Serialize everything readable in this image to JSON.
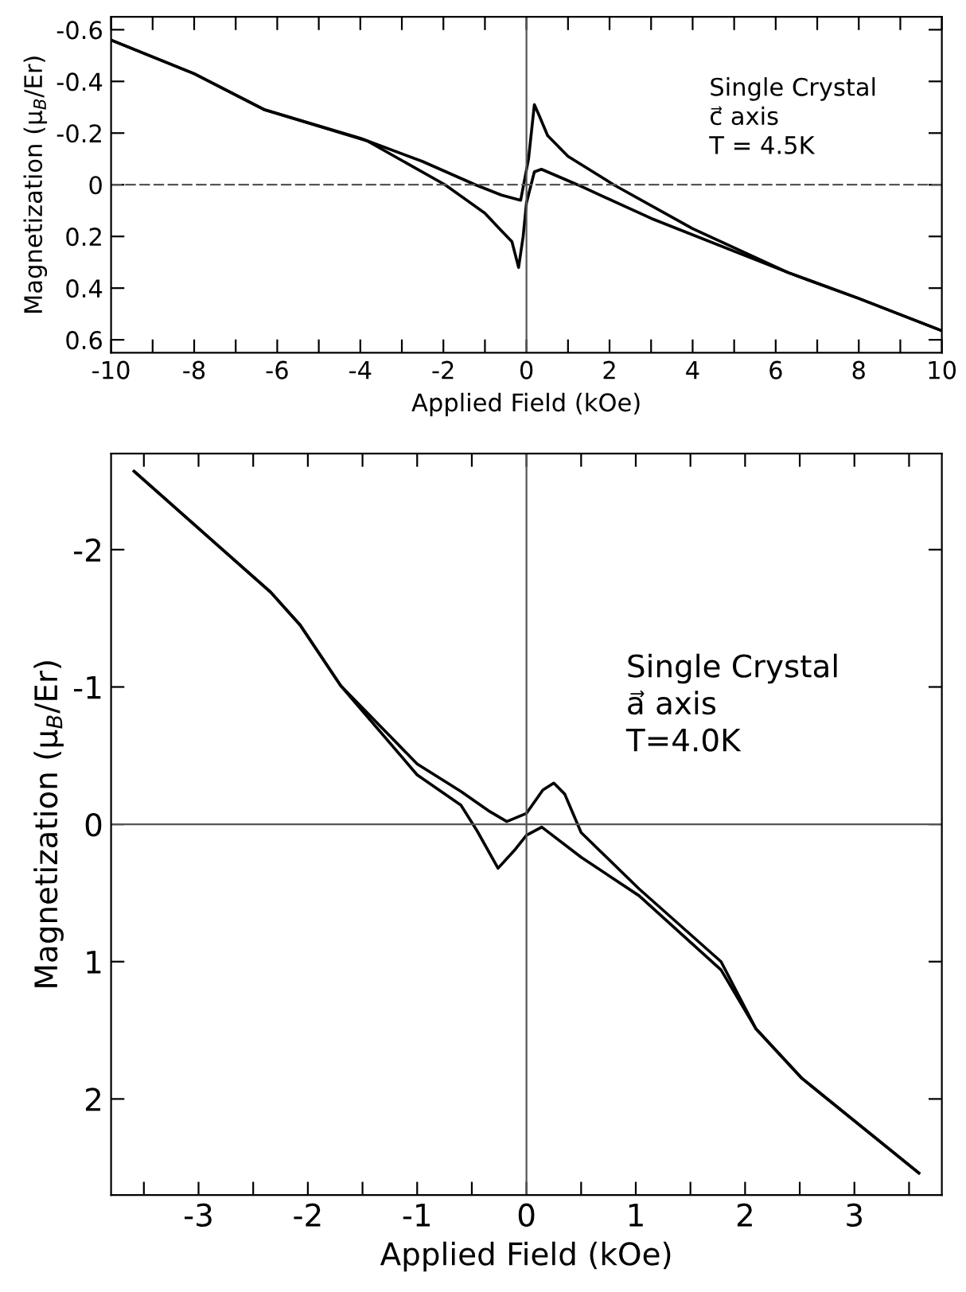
{
  "chart_data": [
    {
      "type": "line",
      "xlabel": "Applied Field (kOe)",
      "ylabel": "Magnetization (μ$_{B}$/Er)",
      "annotations": [
        "Single Crystal\nc⃗ axis\nT = 4.5K"
      ],
      "xlim": [
        -10,
        10
      ],
      "ylim": [
        0.65,
        -0.65
      ],
      "xticks": [
        -10,
        {
          "value": -9,
          "label": null
        },
        -8,
        {
          "value": -7,
          "label": null
        },
        -6,
        {
          "value": -5,
          "label": null
        },
        -4,
        {
          "value": -3,
          "label": null
        },
        -2,
        {
          "value": -1,
          "label": null
        },
        0,
        {
          "value": 1,
          "label": null
        },
        2,
        {
          "value": 3,
          "label": null
        },
        4,
        {
          "value": 5,
          "label": null
        },
        6,
        {
          "value": 7,
          "label": null
        },
        8,
        {
          "value": 9,
          "label": null
        },
        10
      ],
      "yticks": [
        -0.6,
        -0.4,
        -0.2,
        0,
        0.2,
        0.4,
        0.6
      ],
      "ref_lines": [
        {
          "axis": "x",
          "value": 0,
          "line_style": "solid"
        },
        {
          "axis": "y",
          "value": 0,
          "line_style": "dashed"
        }
      ],
      "grid": false,
      "legend": false,
      "marker": "none",
      "line_style": "solid",
      "series": [
        {
          "color": "#000000",
          "x": [
            -10,
            -8,
            -6.3,
            -4,
            -2.5,
            -1.23,
            -0.6,
            -0.14,
            0.05,
            0.19,
            0.3,
            0.51,
            1,
            2.1,
            4,
            6.3,
            8,
            10
          ],
          "values": [
            -0.56,
            -0.43,
            -0.29,
            -0.18,
            -0.09,
            0,
            0.04,
            0.06,
            -0.1,
            -0.31,
            -0.27,
            -0.19,
            -0.11,
            0,
            0.17,
            0.34,
            0.44,
            0.565
          ]
        },
        {
          "color": "#000000",
          "x": [
            -10,
            -8,
            -6.3,
            -3.84,
            -1.96,
            -1,
            -0.65,
            -0.35,
            -0.19,
            -0.08,
            0,
            0.19,
            0.36,
            1.23,
            3,
            6.3,
            8,
            10
          ],
          "values": [
            -0.56,
            -0.43,
            -0.29,
            -0.17,
            0,
            0.11,
            0.17,
            0.22,
            0.32,
            0.2,
            0.07,
            -0.05,
            -0.06,
            0,
            0.13,
            0.34,
            0.44,
            0.565
          ]
        }
      ]
    },
    {
      "type": "line",
      "xlabel": "Applied Field (kOe)",
      "ylabel": "Magnetization (μ$_{B}$/Er)",
      "annotations": [
        "Single Crystal\na⃗ axis\nT=4.0K"
      ],
      "xlim": [
        -3.8,
        3.8
      ],
      "ylim": [
        2.7,
        -2.7
      ],
      "xticks": [
        {
          "value": -3.5,
          "label": null
        },
        -3,
        {
          "value": -2.5,
          "label": null
        },
        -2,
        {
          "value": -1.5,
          "label": null
        },
        -1,
        {
          "value": -0.5,
          "label": null
        },
        0,
        {
          "value": 0.5,
          "label": null
        },
        1,
        {
          "value": 1.5,
          "label": null
        },
        2,
        {
          "value": 2.5,
          "label": null
        },
        3,
        {
          "value": 3.5,
          "label": null
        }
      ],
      "yticks": [
        -2,
        -1,
        0,
        1,
        2
      ],
      "ref_lines": [
        {
          "axis": "x",
          "value": 0,
          "line_style": "solid"
        },
        {
          "axis": "y",
          "value": 0,
          "line_style": "solid"
        }
      ],
      "grid": false,
      "legend": false,
      "marker": "none",
      "line_style": "solid",
      "series": [
        {
          "color": "#000000",
          "x": [
            -3.59,
            -2.34,
            -2.07,
            -1.7,
            -1.0,
            -0.6,
            -0.35,
            -0.18,
            0,
            0.15,
            0.25,
            0.35,
            0.5,
            1.03,
            1.78,
            2.1,
            2.52,
            3.59
          ],
          "values": [
            -2.57,
            -1.69,
            -1.45,
            -1.01,
            -0.44,
            -0.24,
            -0.1,
            -0.02,
            -0.08,
            -0.25,
            -0.3,
            -0.22,
            0.06,
            0.47,
            1.0,
            1.49,
            1.85,
            2.54
          ]
        },
        {
          "color": "#000000",
          "x": [
            -3.59,
            -2.34,
            -2.07,
            -1.7,
            -1.0,
            -0.6,
            -0.45,
            -0.26,
            -0.1,
            0,
            0.14,
            0.5,
            1.03,
            1.78,
            2.1,
            2.52,
            3.59
          ],
          "values": [
            -2.57,
            -1.69,
            -1.45,
            -1.01,
            -0.36,
            -0.14,
            0.05,
            0.32,
            0.18,
            0.08,
            0.02,
            0.24,
            0.52,
            1.06,
            1.49,
            1.85,
            2.54
          ]
        }
      ]
    }
  ]
}
